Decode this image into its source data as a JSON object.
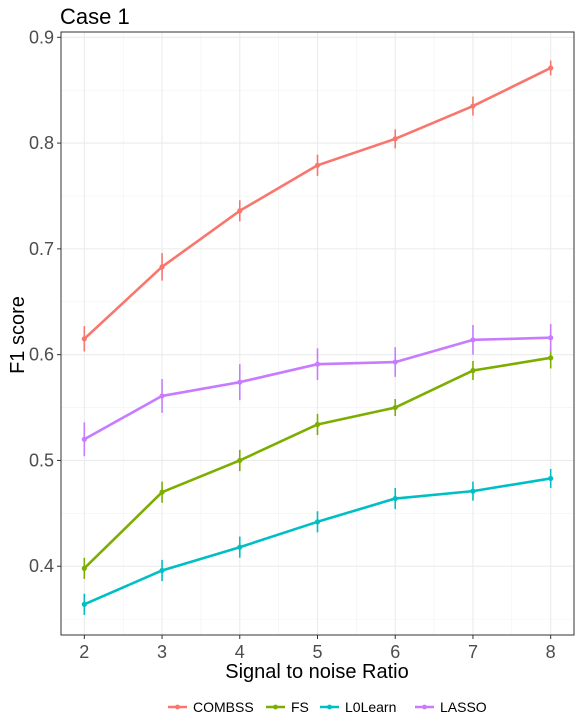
{
  "chart_data": {
    "type": "line",
    "title": "Case 1",
    "xlabel": "Signal to noise Ratio",
    "ylabel": "F1 score",
    "x": [
      2,
      3,
      4,
      5,
      6,
      7,
      8
    ],
    "xlim": [
      1.7,
      8.3
    ],
    "ylim": [
      0.335,
      0.905
    ],
    "yticks": [
      0.4,
      0.5,
      0.6,
      0.7,
      0.8,
      0.9
    ],
    "ytick_labels": [
      "0.4",
      "0.5",
      "0.6",
      "0.7",
      "0.8",
      "0.9"
    ],
    "xticks": [
      2,
      3,
      4,
      5,
      6,
      7,
      8
    ],
    "xtick_labels": [
      "2",
      "3",
      "4",
      "5",
      "6",
      "7",
      "8"
    ],
    "grid": true,
    "legend_position": "bottom",
    "series": [
      {
        "name": "COMBSS",
        "color": "#F8766D",
        "values": [
          0.615,
          0.683,
          0.736,
          0.779,
          0.804,
          0.835,
          0.871
        ],
        "err": [
          0.012,
          0.013,
          0.01,
          0.01,
          0.009,
          0.009,
          0.007
        ]
      },
      {
        "name": "FS",
        "color": "#7CAE00",
        "values": [
          0.398,
          0.47,
          0.5,
          0.534,
          0.55,
          0.585,
          0.597
        ],
        "err": [
          0.01,
          0.01,
          0.01,
          0.01,
          0.008,
          0.009,
          0.01
        ]
      },
      {
        "name": "L0Learn",
        "color": "#00BFC4",
        "values": [
          0.364,
          0.396,
          0.418,
          0.442,
          0.464,
          0.471,
          0.483
        ],
        "err": [
          0.01,
          0.01,
          0.01,
          0.01,
          0.01,
          0.009,
          0.009
        ]
      },
      {
        "name": "LASSO",
        "color": "#C77CFF",
        "values": [
          0.52,
          0.561,
          0.574,
          0.591,
          0.593,
          0.614,
          0.616
        ],
        "err": [
          0.016,
          0.016,
          0.017,
          0.015,
          0.014,
          0.014,
          0.013
        ]
      }
    ]
  }
}
